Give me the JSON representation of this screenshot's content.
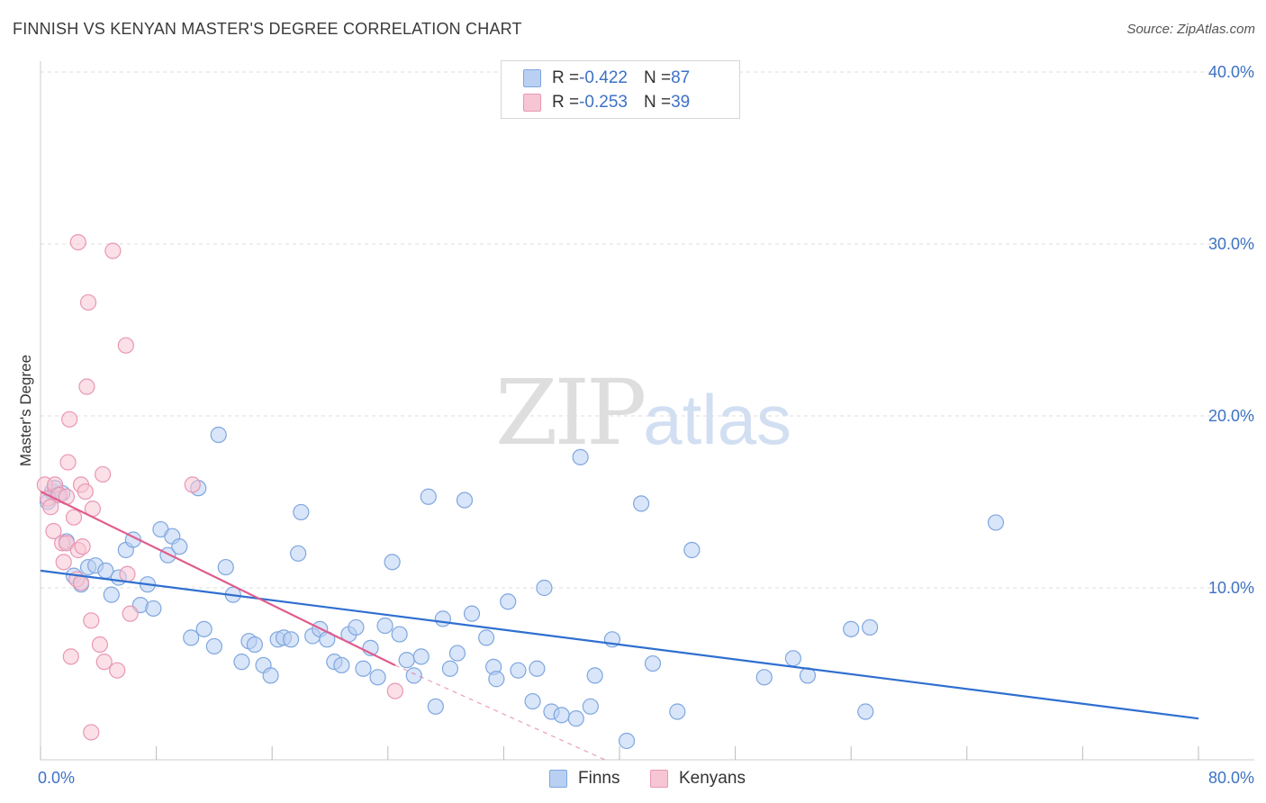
{
  "title": "FINNISH VS KENYAN MASTER'S DEGREE CORRELATION CHART",
  "source": "Source: ZipAtlas.com",
  "watermark": {
    "zip": "ZIP",
    "atlas": "atlas"
  },
  "legend": {
    "rows": [
      {
        "r_label": "R = ",
        "r_value": "-0.422",
        "n_label": "N = ",
        "n_value": "87"
      },
      {
        "r_label": "R = ",
        "r_value": "-0.253",
        "n_label": "N = ",
        "n_value": "39"
      }
    ]
  },
  "bottom_legend": {
    "finns": "Finns",
    "kenyans": "Kenyans"
  },
  "colors": {
    "finns_fill": "#b9d0f2",
    "finns_stroke": "#7ea7e0",
    "finns_line": "#2f6fd0",
    "kenyans_fill": "#f7c6d4",
    "kenyans_stroke": "#e997b3",
    "kenyans_line": "#e05c8c",
    "tick_text": "#3d72c4",
    "grid": "#dddddd"
  },
  "chart_data": {
    "type": "scatter",
    "title": "FINNISH VS KENYAN MASTER'S DEGREE CORRELATION CHART",
    "xlabel": "",
    "ylabel": "Master's Degree",
    "xlim": [
      0,
      80
    ],
    "ylim": [
      0,
      40
    ],
    "x_tick_labels": [
      "0.0%",
      "80.0%"
    ],
    "y_ticks": [
      10,
      20,
      30,
      40
    ],
    "y_tick_labels": [
      "10.0%",
      "20.0%",
      "30.0%",
      "40.0%"
    ],
    "grid": true,
    "legend_position": "top-center",
    "series": [
      {
        "name": "Finns",
        "r": -0.422,
        "n": 87,
        "trend": {
          "x": [
            0,
            80
          ],
          "y": [
            11.0,
            2.4
          ]
        },
        "points": [
          [
            0.5,
            15.0
          ],
          [
            0.8,
            15.6
          ],
          [
            1.0,
            15.8
          ],
          [
            1.2,
            15.4
          ],
          [
            1.5,
            15.5
          ],
          [
            1.8,
            12.7
          ],
          [
            2.3,
            10.7
          ],
          [
            2.8,
            10.2
          ],
          [
            3.3,
            11.2
          ],
          [
            3.8,
            11.3
          ],
          [
            4.5,
            11.0
          ],
          [
            4.9,
            9.6
          ],
          [
            5.4,
            10.6
          ],
          [
            5.9,
            12.2
          ],
          [
            6.4,
            12.8
          ],
          [
            6.9,
            9.0
          ],
          [
            7.4,
            10.2
          ],
          [
            7.8,
            8.8
          ],
          [
            8.3,
            13.4
          ],
          [
            8.8,
            11.9
          ],
          [
            9.1,
            13.0
          ],
          [
            9.6,
            12.4
          ],
          [
            10.4,
            7.1
          ],
          [
            10.9,
            15.8
          ],
          [
            11.3,
            7.6
          ],
          [
            12.0,
            6.6
          ],
          [
            12.3,
            18.9
          ],
          [
            12.8,
            11.2
          ],
          [
            13.3,
            9.6
          ],
          [
            13.9,
            5.7
          ],
          [
            14.4,
            6.9
          ],
          [
            14.8,
            6.7
          ],
          [
            15.4,
            5.5
          ],
          [
            15.9,
            4.9
          ],
          [
            16.4,
            7.0
          ],
          [
            16.8,
            7.1
          ],
          [
            17.3,
            7.0
          ],
          [
            17.8,
            12.0
          ],
          [
            18.0,
            14.4
          ],
          [
            18.8,
            7.2
          ],
          [
            19.3,
            7.6
          ],
          [
            19.8,
            7.0
          ],
          [
            20.3,
            5.7
          ],
          [
            20.8,
            5.5
          ],
          [
            21.3,
            7.3
          ],
          [
            21.8,
            7.7
          ],
          [
            22.3,
            5.3
          ],
          [
            22.8,
            6.5
          ],
          [
            23.3,
            4.8
          ],
          [
            23.8,
            7.8
          ],
          [
            24.3,
            11.5
          ],
          [
            24.8,
            7.3
          ],
          [
            25.3,
            5.8
          ],
          [
            25.8,
            4.9
          ],
          [
            26.3,
            6.0
          ],
          [
            26.8,
            15.3
          ],
          [
            27.3,
            3.1
          ],
          [
            27.8,
            8.2
          ],
          [
            28.3,
            5.3
          ],
          [
            28.8,
            6.2
          ],
          [
            29.3,
            15.1
          ],
          [
            29.8,
            8.5
          ],
          [
            30.8,
            7.1
          ],
          [
            31.3,
            5.4
          ],
          [
            31.5,
            4.7
          ],
          [
            32.3,
            9.2
          ],
          [
            33.0,
            5.2
          ],
          [
            34.0,
            3.4
          ],
          [
            34.3,
            5.3
          ],
          [
            34.8,
            10.0
          ],
          [
            35.3,
            2.8
          ],
          [
            36.0,
            2.6
          ],
          [
            37.0,
            2.4
          ],
          [
            37.3,
            17.6
          ],
          [
            38.0,
            3.1
          ],
          [
            38.3,
            4.9
          ],
          [
            39.5,
            7.0
          ],
          [
            40.5,
            1.1
          ],
          [
            41.5,
            14.9
          ],
          [
            42.3,
            5.6
          ],
          [
            44.0,
            2.8
          ],
          [
            45.0,
            12.2
          ],
          [
            50.0,
            4.8
          ],
          [
            52.0,
            5.9
          ],
          [
            53.0,
            4.9
          ],
          [
            56.0,
            7.6
          ],
          [
            57.0,
            2.8
          ],
          [
            57.3,
            7.7
          ],
          [
            66.0,
            13.8
          ]
        ]
      },
      {
        "name": "Kenyans",
        "r": -0.253,
        "n": 39,
        "trend": {
          "x": [
            0,
            24.5
          ],
          "y": [
            15.6,
            5.5
          ]
        },
        "trend_dashed": {
          "x": [
            24.5,
            39
          ],
          "y": [
            5.5,
            0.0
          ]
        },
        "points": [
          [
            0.3,
            16.0
          ],
          [
            0.5,
            15.2
          ],
          [
            0.7,
            14.7
          ],
          [
            0.9,
            13.3
          ],
          [
            1.0,
            16.0
          ],
          [
            1.3,
            15.4
          ],
          [
            1.5,
            12.6
          ],
          [
            1.6,
            11.5
          ],
          [
            1.8,
            15.3
          ],
          [
            1.8,
            12.6
          ],
          [
            1.9,
            17.3
          ],
          [
            2.0,
            19.8
          ],
          [
            2.1,
            6.0
          ],
          [
            2.3,
            14.1
          ],
          [
            2.5,
            10.5
          ],
          [
            2.6,
            12.2
          ],
          [
            2.6,
            30.1
          ],
          [
            2.8,
            10.3
          ],
          [
            2.8,
            16.0
          ],
          [
            2.9,
            12.4
          ],
          [
            3.1,
            15.6
          ],
          [
            3.2,
            21.7
          ],
          [
            3.3,
            26.6
          ],
          [
            3.5,
            1.6
          ],
          [
            3.5,
            8.1
          ],
          [
            3.6,
            14.6
          ],
          [
            4.1,
            6.7
          ],
          [
            4.3,
            16.6
          ],
          [
            4.4,
            5.7
          ],
          [
            5.0,
            29.6
          ],
          [
            5.3,
            5.2
          ],
          [
            5.9,
            24.1
          ],
          [
            6.0,
            10.8
          ],
          [
            6.2,
            8.5
          ],
          [
            10.5,
            16.0
          ],
          [
            24.5,
            4.0
          ]
        ]
      }
    ]
  }
}
